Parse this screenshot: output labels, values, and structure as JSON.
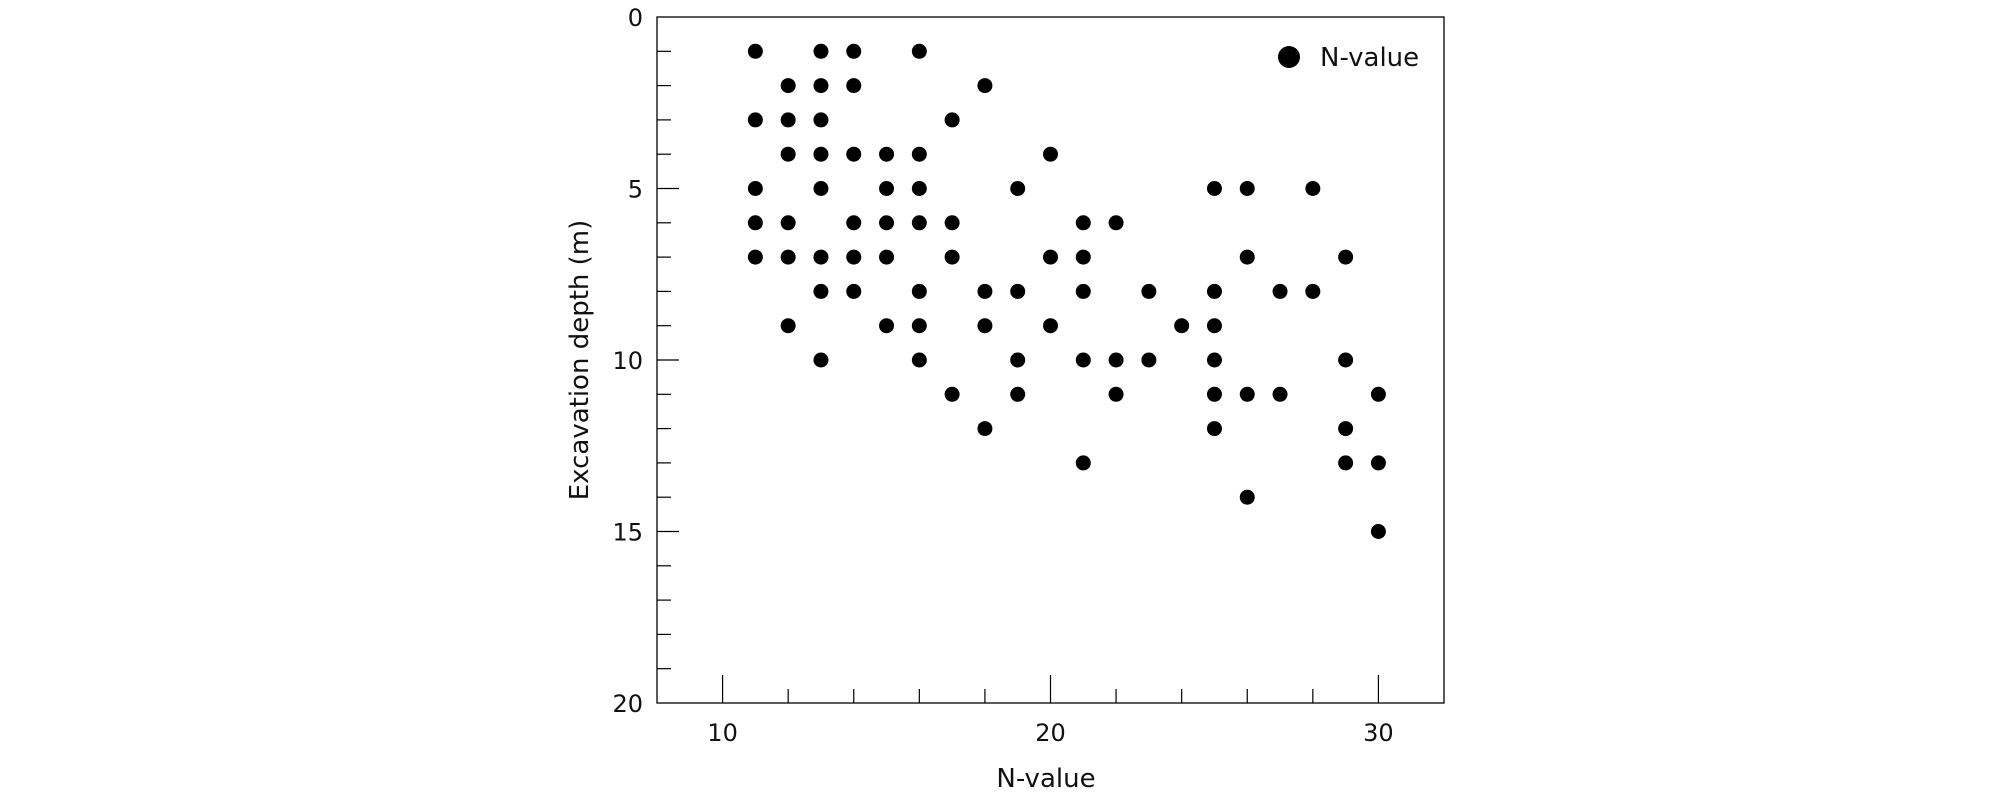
{
  "chart_data": {
    "type": "scatter",
    "title": "",
    "xlabel": "N-value",
    "ylabel": "Excavation depth (m)",
    "xlim": [
      8,
      32
    ],
    "ylim": [
      0,
      20
    ],
    "y_inverted": true,
    "x_ticks": [
      10,
      20,
      30
    ],
    "y_ticks": [
      0,
      5,
      10,
      15,
      20
    ],
    "legend": {
      "entries": [
        "N-value"
      ],
      "placement": "top-right"
    },
    "grid": false,
    "marker_color": "#000000",
    "series": [
      {
        "name": "N-value",
        "points": [
          [
            11,
            1
          ],
          [
            13,
            1
          ],
          [
            14,
            1
          ],
          [
            16,
            1
          ],
          [
            12,
            2
          ],
          [
            13,
            2
          ],
          [
            14,
            2
          ],
          [
            18,
            2
          ],
          [
            11,
            3
          ],
          [
            12,
            3
          ],
          [
            13,
            3
          ],
          [
            17,
            3
          ],
          [
            12,
            4
          ],
          [
            13,
            4
          ],
          [
            14,
            4
          ],
          [
            15,
            4
          ],
          [
            16,
            4
          ],
          [
            20,
            4
          ],
          [
            11,
            5
          ],
          [
            13,
            5
          ],
          [
            15,
            5
          ],
          [
            16,
            5
          ],
          [
            19,
            5
          ],
          [
            25,
            5
          ],
          [
            26,
            5
          ],
          [
            28,
            5
          ],
          [
            11,
            6
          ],
          [
            12,
            6
          ],
          [
            14,
            6
          ],
          [
            15,
            6
          ],
          [
            16,
            6
          ],
          [
            17,
            6
          ],
          [
            21,
            6
          ],
          [
            22,
            6
          ],
          [
            11,
            7
          ],
          [
            12,
            7
          ],
          [
            13,
            7
          ],
          [
            14,
            7
          ],
          [
            15,
            7
          ],
          [
            17,
            7
          ],
          [
            20,
            7
          ],
          [
            21,
            7
          ],
          [
            26,
            7
          ],
          [
            29,
            7
          ],
          [
            13,
            8
          ],
          [
            14,
            8
          ],
          [
            16,
            8
          ],
          [
            18,
            8
          ],
          [
            19,
            8
          ],
          [
            21,
            8
          ],
          [
            23,
            8
          ],
          [
            25,
            8
          ],
          [
            27,
            8
          ],
          [
            28,
            8
          ],
          [
            12,
            9
          ],
          [
            15,
            9
          ],
          [
            16,
            9
          ],
          [
            18,
            9
          ],
          [
            20,
            9
          ],
          [
            24,
            9
          ],
          [
            25,
            9
          ],
          [
            13,
            10
          ],
          [
            16,
            10
          ],
          [
            19,
            10
          ],
          [
            21,
            10
          ],
          [
            22,
            10
          ],
          [
            23,
            10
          ],
          [
            25,
            10
          ],
          [
            29,
            10
          ],
          [
            17,
            11
          ],
          [
            19,
            11
          ],
          [
            22,
            11
          ],
          [
            25,
            11
          ],
          [
            26,
            11
          ],
          [
            27,
            11
          ],
          [
            30,
            11
          ],
          [
            18,
            12
          ],
          [
            25,
            12
          ],
          [
            29,
            12
          ],
          [
            21,
            13
          ],
          [
            29,
            13
          ],
          [
            30,
            13
          ],
          [
            26,
            14
          ],
          [
            30,
            15
          ]
        ]
      }
    ]
  }
}
